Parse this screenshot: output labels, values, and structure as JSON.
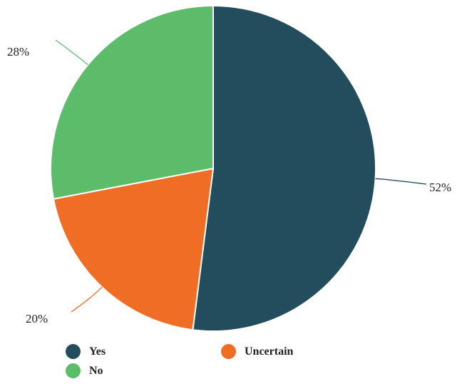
{
  "chart_data": {
    "type": "pie",
    "slices": [
      {
        "label": "Yes",
        "value": 52,
        "value_label": "52%",
        "color": "#234d5c"
      },
      {
        "label": "Uncertain",
        "value": 20,
        "value_label": "20%",
        "color": "#f06d26"
      },
      {
        "label": "No",
        "value": 28,
        "value_label": "28%",
        "color": "#5cbc6a"
      }
    ],
    "legend_position": "bottom",
    "start_angle": "top, clockwise"
  }
}
